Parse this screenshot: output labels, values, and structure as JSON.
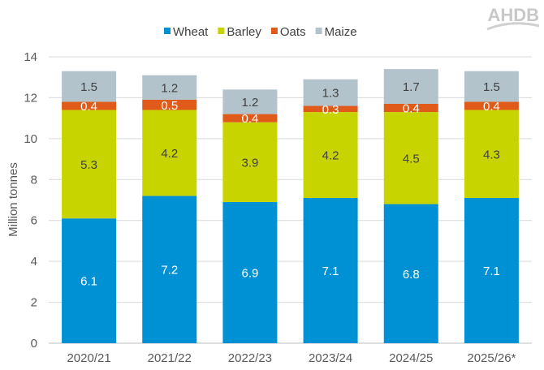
{
  "logo_text": "AHDB",
  "chart_data": {
    "type": "bar",
    "stacked": true,
    "title": "",
    "xlabel": "",
    "ylabel": "Million tonnes",
    "ylim": [
      0,
      14
    ],
    "yticks": [
      0,
      2,
      4,
      6,
      8,
      10,
      12,
      14
    ],
    "grid": true,
    "legend_position": "top",
    "categories": [
      "2020/21",
      "2021/22",
      "2022/23",
      "2023/24",
      "2024/25",
      "2025/26*"
    ],
    "series": [
      {
        "name": "Wheat",
        "color": "#0091d5",
        "label_color": "#ffffff",
        "values": [
          6.1,
          7.2,
          6.9,
          7.1,
          6.8,
          7.1
        ]
      },
      {
        "name": "Barley",
        "color": "#c8d400",
        "label_color": "#404040",
        "values": [
          5.3,
          4.2,
          3.9,
          4.2,
          4.5,
          4.3
        ]
      },
      {
        "name": "Oats",
        "color": "#e05a1a",
        "label_color": "#ffffff",
        "values": [
          0.4,
          0.5,
          0.4,
          0.3,
          0.4,
          0.4
        ]
      },
      {
        "name": "Maize",
        "color": "#b3c3cc",
        "label_color": "#404040",
        "values": [
          1.5,
          1.2,
          1.2,
          1.3,
          1.7,
          1.5
        ]
      }
    ]
  }
}
